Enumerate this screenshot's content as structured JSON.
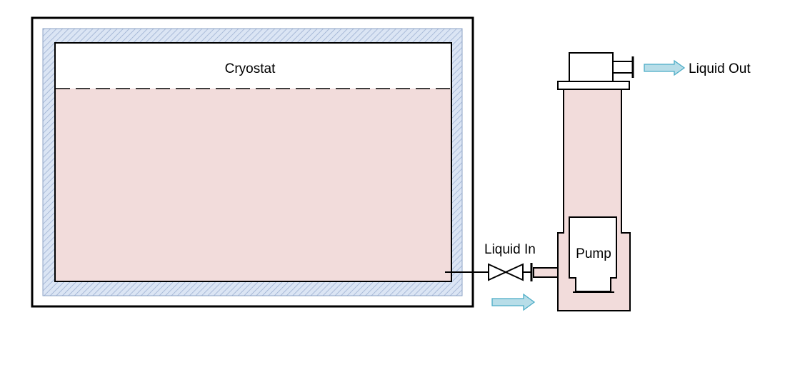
{
  "labels": {
    "cryostat": "Cryostat",
    "liquid_out": "Liquid Out",
    "liquid_in": "Liquid In",
    "pump": "Pump"
  },
  "colors": {
    "liquid_fill": "#f2dcdb",
    "insulation_fill": "#dbe5f4",
    "insulation_hatch": "#9aaed0",
    "flow_arrow_fill": "#b7dde8",
    "flow_arrow_stroke": "#4bacc6",
    "outline": "#000000"
  }
}
